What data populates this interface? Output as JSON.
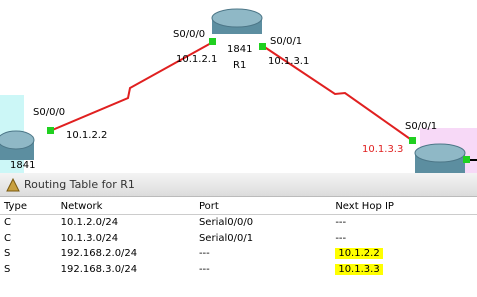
{
  "topology": {
    "routers": [
      {
        "model": "1841",
        "name": "R1"
      },
      {
        "model": "1841"
      }
    ],
    "labels": {
      "r1_s000": "S0/0/0",
      "r1_s001": "S0/0/1",
      "r1_ip1": "10.1.2.1",
      "r1_ip2": "10.1.3.1",
      "left_s000": "S0/0/0",
      "left_ip": "10.1.2.2",
      "right_s001": "S0/0/1",
      "right_ip": "10.1.3.3"
    }
  },
  "window": {
    "title": "Routing Table for R1",
    "table": {
      "headers": [
        "Type",
        "Network",
        "Port",
        "Next Hop IP"
      ],
      "rows": [
        [
          "C",
          "10.1.2.0/24",
          "Serial0/0/0",
          "---"
        ],
        [
          "C",
          "10.1.3.0/24",
          "Serial0/0/1",
          "---"
        ],
        [
          "S",
          "192.168.2.0/24",
          "---",
          "10.1.2.2"
        ],
        [
          "S",
          "192.168.3.0/24",
          "---",
          "10.1.3.3"
        ]
      ]
    }
  }
}
